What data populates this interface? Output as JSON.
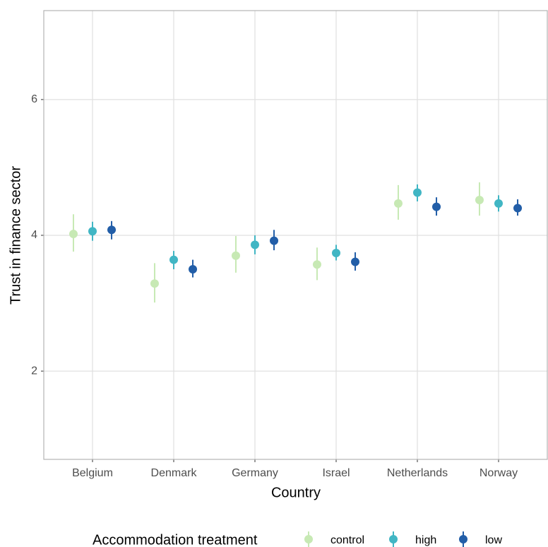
{
  "chart_data": {
    "type": "pointrange",
    "x_label": "Country",
    "y_label": "Trust in finance sector",
    "categories": [
      "Belgium",
      "Denmark",
      "Germany",
      "Israel",
      "Netherlands",
      "Norway"
    ],
    "legend_title": "Accommodation treatment",
    "series": [
      {
        "name": "control",
        "color": "#c7e9b4",
        "values": [
          4.02,
          3.29,
          3.7,
          3.57,
          4.47,
          4.52
        ],
        "lower": [
          3.76,
          3.01,
          3.45,
          3.34,
          4.23,
          4.29
        ],
        "upper": [
          4.31,
          3.59,
          3.99,
          3.82,
          4.74,
          4.78
        ]
      },
      {
        "name": "high",
        "color": "#41b6c4",
        "values": [
          4.06,
          3.64,
          3.86,
          3.74,
          4.63,
          4.47
        ],
        "lower": [
          3.92,
          3.5,
          3.72,
          3.63,
          4.5,
          4.35
        ],
        "upper": [
          4.2,
          3.77,
          4.0,
          3.86,
          4.75,
          4.59
        ]
      },
      {
        "name": "low",
        "color": "#225ea8",
        "values": [
          4.08,
          3.5,
          3.92,
          3.61,
          4.42,
          4.4
        ],
        "lower": [
          3.94,
          3.38,
          3.78,
          3.48,
          4.29,
          4.29
        ],
        "upper": [
          4.21,
          3.64,
          4.08,
          3.75,
          4.56,
          4.53
        ]
      }
    ],
    "ylim": [
      0.7,
      7.31
    ],
    "yticks": [
      2,
      4,
      6
    ],
    "grid": true,
    "legend_position": "bottom"
  }
}
